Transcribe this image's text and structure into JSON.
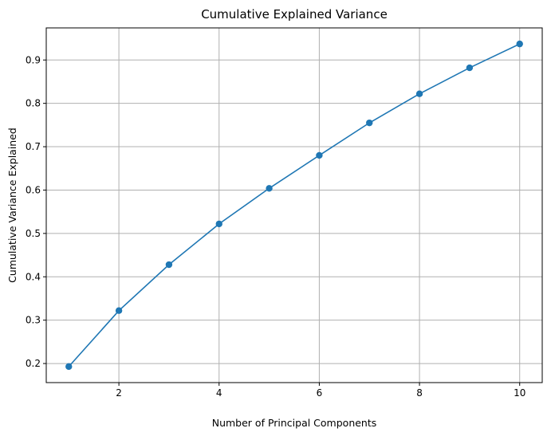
{
  "chart_data": {
    "type": "line",
    "title": "Cumulative Explained Variance",
    "xlabel": "Number of Principal Components",
    "ylabel": "Cumulative Variance Explained",
    "x": [
      1,
      2,
      3,
      4,
      5,
      6,
      7,
      8,
      9,
      10
    ],
    "series": [
      {
        "values": [
          0.193,
          0.322,
          0.428,
          0.522,
          0.604,
          0.68,
          0.755,
          0.822,
          0.882,
          0.937
        ],
        "color": "#1f77b4",
        "marker": "circle"
      }
    ],
    "xticks": [
      2,
      4,
      6,
      8,
      10
    ],
    "xtick_labels": [
      "2",
      "4",
      "6",
      "8",
      "10"
    ],
    "yticks": [
      0.2,
      0.3,
      0.4,
      0.5,
      0.6,
      0.7,
      0.8,
      0.9
    ],
    "ytick_labels": [
      "0.2",
      "0.3",
      "0.4",
      "0.5",
      "0.6",
      "0.7",
      "0.8",
      "0.9"
    ],
    "xlim": [
      0.55,
      10.45
    ],
    "ylim": [
      0.156,
      0.974
    ],
    "grid": true,
    "legend": "none"
  }
}
